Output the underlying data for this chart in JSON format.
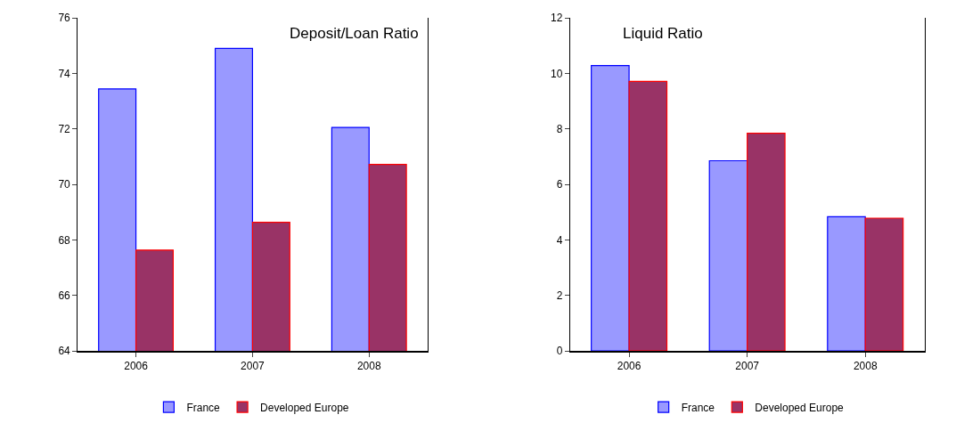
{
  "chart_data": [
    {
      "type": "bar",
      "title": "Deposit/Loan Ratio",
      "categories": [
        "2006",
        "2007",
        "2008"
      ],
      "series": [
        {
          "name": "France",
          "color": "#9999ff",
          "values": [
            73.44,
            74.9,
            72.05
          ]
        },
        {
          "name": "Developed Europe",
          "color": "#993366",
          "values": [
            67.63,
            68.63,
            70.72
          ]
        }
      ],
      "ylim": [
        64,
        76
      ],
      "yticks": [
        64,
        66,
        68,
        70,
        72,
        74,
        76
      ],
      "legend": "bottom"
    },
    {
      "type": "bar",
      "title": "Liquid Ratio",
      "categories": [
        "2006",
        "2007",
        "2008"
      ],
      "series": [
        {
          "name": "France",
          "color": "#9999ff",
          "values": [
            10.28,
            6.85,
            4.83
          ]
        },
        {
          "name": "Developed Europe",
          "color": "#993366",
          "values": [
            9.71,
            7.84,
            4.78
          ]
        }
      ],
      "ylim": [
        0,
        12
      ],
      "yticks": [
        0,
        2,
        4,
        6,
        8,
        10,
        12
      ],
      "legend": "bottom"
    }
  ]
}
